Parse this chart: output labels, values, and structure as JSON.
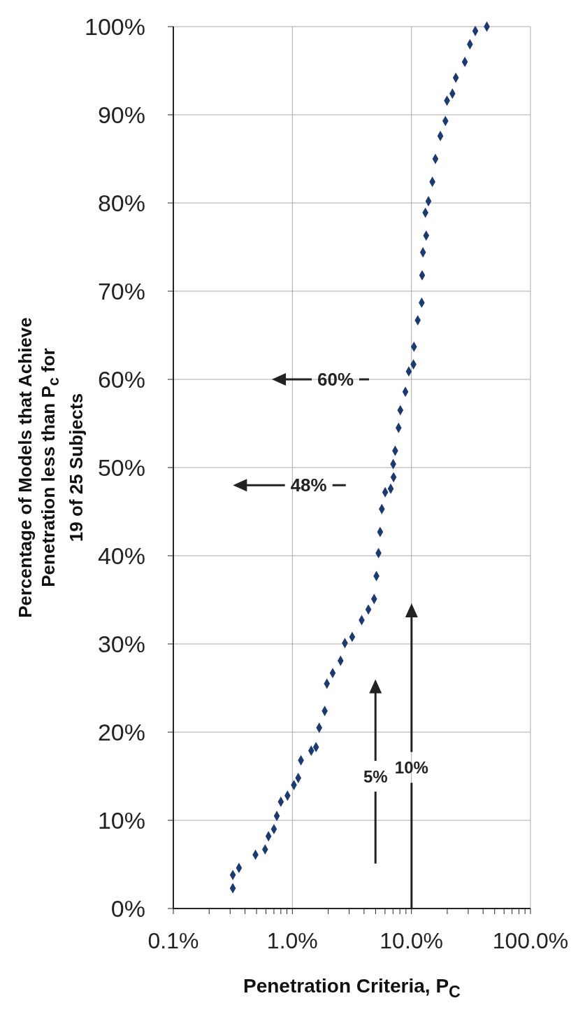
{
  "chart_data": {
    "type": "scatter",
    "xlabel": "Penetration Criteria, P$_{C}$",
    "ylabel": "Percentage of Models that Achieve\nPenetration less than P$_{c}$ for\n19 of 25 Subjects",
    "x": [
      43,
      34.4,
      31,
      28.1,
      23.6,
      22.1,
      19.9,
      19.3,
      17.5,
      15.9,
      15,
      13.9,
      13.1,
      13.3,
      12.5,
      12.3,
      12.2,
      11.3,
      10.5,
      10.4,
      9.5,
      8.9,
      8.07,
      7.8,
      7.3,
      7.03,
      7.08,
      6.7,
      6.02,
      5.64,
      5.46,
      5.29,
      5.08,
      4.86,
      4.35,
      3.82,
      3.18,
      2.76,
      2.54,
      2.18,
      1.95,
      1.87,
      1.68,
      1.58,
      1.44,
      1.18,
      1.12,
      1.03,
      0.91,
      0.8,
      0.74,
      0.7,
      0.63,
      0.59,
      0.49,
      0.356,
      0.316,
      0.316
    ],
    "values": [
      100,
      99.5,
      98,
      96,
      94.2,
      92.4,
      91.6,
      89.3,
      87.6,
      85,
      82.4,
      80.2,
      78.9,
      76.3,
      74.4,
      71.8,
      68.7,
      66.7,
      63.7,
      61.7,
      60.9,
      58.6,
      56.5,
      54.5,
      51.9,
      50.4,
      48.9,
      47.6,
      47.2,
      45.3,
      42.7,
      40.3,
      37.7,
      35.1,
      33.9,
      32.7,
      30.8,
      30.1,
      28.1,
      26.7,
      25.5,
      22.4,
      20.5,
      18.3,
      17.9,
      16.8,
      14.8,
      14,
      12.8,
      12.1,
      10.5,
      9,
      8.2,
      6.7,
      6.1,
      4.6,
      3.8,
      2.3
    ],
    "color": "#1c3a70",
    "marker": "diamond",
    "log": "x",
    "xlim": [
      0.1,
      100
    ],
    "xticks": [
      {
        "value": 0.1,
        "label": "0.1%"
      },
      {
        "value": 0.2,
        "label": null
      },
      {
        "value": 0.3,
        "label": null
      },
      {
        "value": 0.4,
        "label": null
      },
      {
        "value": 0.5,
        "label": null
      },
      {
        "value": 0.6,
        "label": null
      },
      {
        "value": 0.7,
        "label": null
      },
      {
        "value": 0.8,
        "label": null
      },
      {
        "value": 0.9,
        "label": null
      },
      {
        "value": 1,
        "label": "1.0%"
      },
      {
        "value": 2,
        "label": null
      },
      {
        "value": 3,
        "label": null
      },
      {
        "value": 4,
        "label": null
      },
      {
        "value": 5,
        "label": null
      },
      {
        "value": 6,
        "label": null
      },
      {
        "value": 7,
        "label": null
      },
      {
        "value": 8,
        "label": null
      },
      {
        "value": 9,
        "label": null
      },
      {
        "value": 10,
        "label": "10.0%"
      },
      {
        "value": 20,
        "label": null
      },
      {
        "value": 30,
        "label": null
      },
      {
        "value": 40,
        "label": null
      },
      {
        "value": 50,
        "label": null
      },
      {
        "value": 60,
        "label": null
      },
      {
        "value": 70,
        "label": null
      },
      {
        "value": 80,
        "label": null
      },
      {
        "value": 90,
        "label": null
      },
      {
        "value": 100,
        "label": "100.0%"
      }
    ],
    "ylim": [
      0,
      100
    ],
    "yticks": [
      {
        "value": 0,
        "label": "0%"
      },
      {
        "value": 10,
        "label": "10%"
      },
      {
        "value": 20,
        "label": "20%"
      },
      {
        "value": 30,
        "label": "30%"
      },
      {
        "value": 40,
        "label": "40%"
      },
      {
        "value": 50,
        "label": "50%"
      },
      {
        "value": 60,
        "label": "60%"
      },
      {
        "value": 70,
        "label": "70%"
      },
      {
        "value": 80,
        "label": "80%"
      },
      {
        "value": 90,
        "label": "90%"
      },
      {
        "value": 100,
        "label": "100%"
      }
    ],
    "grid": true,
    "annotations": [
      "10%",
      "5%",
      "60%",
      "48%"
    ]
  }
}
